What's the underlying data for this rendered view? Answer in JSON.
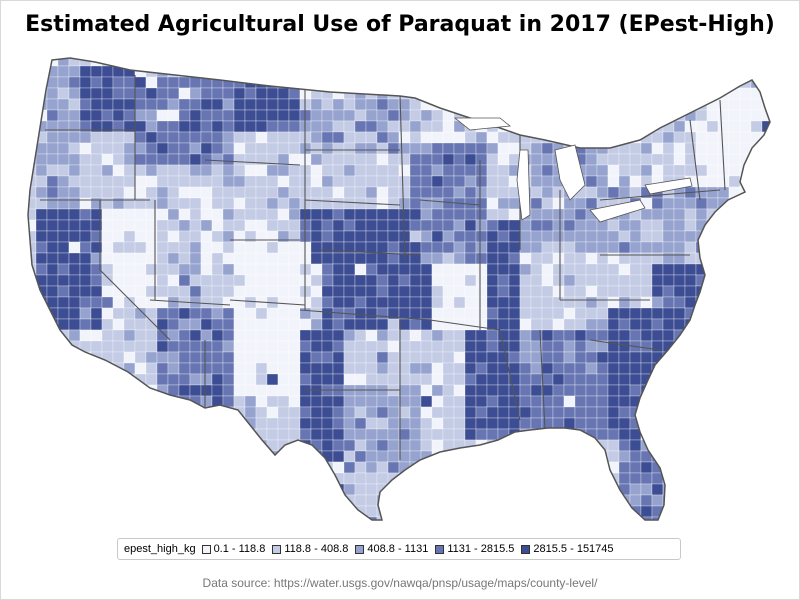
{
  "title": "Estimated Agricultural Use of Paraquat in 2017 (EPest-High)",
  "legend": {
    "title": "epest_high_kg",
    "classes": [
      {
        "label": "0.1 - 118.8",
        "color": "#f2f4fb"
      },
      {
        "label": "118.8 - 408.8",
        "color": "#c4cbe5"
      },
      {
        "label": "408.8 - 1131",
        "color": "#96a3cf"
      },
      {
        "label": "1131 - 2815.5",
        "color": "#6776b3"
      },
      {
        "label": "2815.5 - 151745",
        "color": "#3c4d93"
      }
    ]
  },
  "source": "Data source: https://water.usgs.gov/nawqa/pnsp/usage/maps/county-level/",
  "colors": {
    "state_border": "#555555",
    "background": "#ffffff"
  }
}
